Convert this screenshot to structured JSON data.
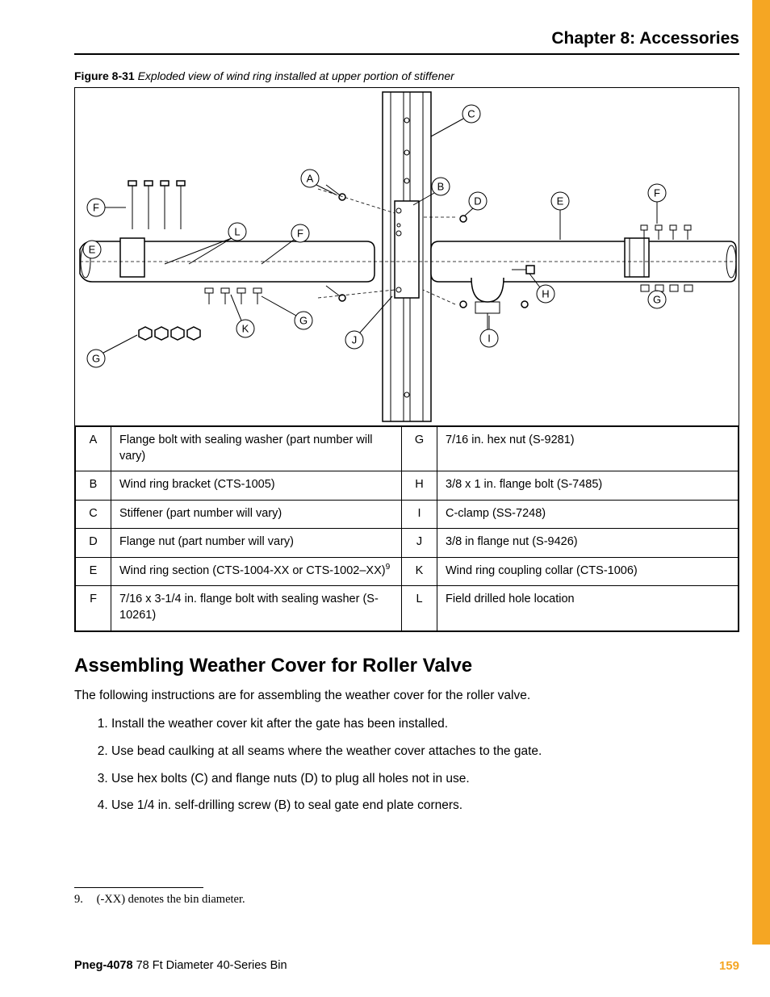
{
  "chapter_title": "Chapter 8: Accessories",
  "figure": {
    "label": "Figure 8-31",
    "caption": "Exploded view of wind ring installed at upper portion of stiffener"
  },
  "diagram": {
    "callouts": [
      "A",
      "B",
      "C",
      "D",
      "E",
      "F",
      "G",
      "H",
      "I",
      "J",
      "K",
      "L"
    ]
  },
  "parts_table": {
    "rows": [
      {
        "k1": "A",
        "d1": "Flange bolt with sealing washer (part number will vary)",
        "k2": "G",
        "d2": "7/16 in. hex nut (S-9281)"
      },
      {
        "k1": "B",
        "d1": "Wind ring bracket (CTS-1005)",
        "k2": "H",
        "d2": "3/8 x 1 in. flange bolt (S-7485)"
      },
      {
        "k1": "C",
        "d1": "Stiffener (part number will vary)",
        "k2": "I",
        "d2": "C-clamp (SS-7248)"
      },
      {
        "k1": "D",
        "d1": "Flange nut (part number will vary)",
        "k2": "J",
        "d2": "3/8 in flange nut (S-9426)"
      },
      {
        "k1": "E",
        "d1_pre": "Wind ring section (CTS-1004-XX or CTS-1002–XX)",
        "d1_sup": "9",
        "k2": "K",
        "d2": "Wind ring coupling collar (CTS-1006)"
      },
      {
        "k1": "F",
        "d1": "7/16 x 3-1/4 in. flange bolt with sealing washer (S-10261)",
        "k2": "L",
        "d2": "Field drilled hole location"
      }
    ],
    "col_widths": {
      "key": 44
    }
  },
  "section": {
    "title": "Assembling Weather Cover for Roller Valve",
    "intro": "The following instructions are for assembling the weather cover for the roller valve.",
    "steps": [
      "Install the weather cover kit after the gate has been installed.",
      "Use bead caulking at all seams where the weather cover attaches to the gate.",
      "Use hex bolts (C) and flange nuts (D) to plug all holes not in use.",
      "Use 1/4 in. self-drilling screw (B) to seal gate end plate corners."
    ]
  },
  "footnote": {
    "num": "9.",
    "text": "(-XX) denotes the bin diameter."
  },
  "footer": {
    "doc_code": "Pneg-4078",
    "doc_title": "78 Ft Diameter 40-Series Bin",
    "page_number": "159"
  },
  "colors": {
    "accent": "#f5a623",
    "text": "#000000",
    "rule": "#000000"
  }
}
